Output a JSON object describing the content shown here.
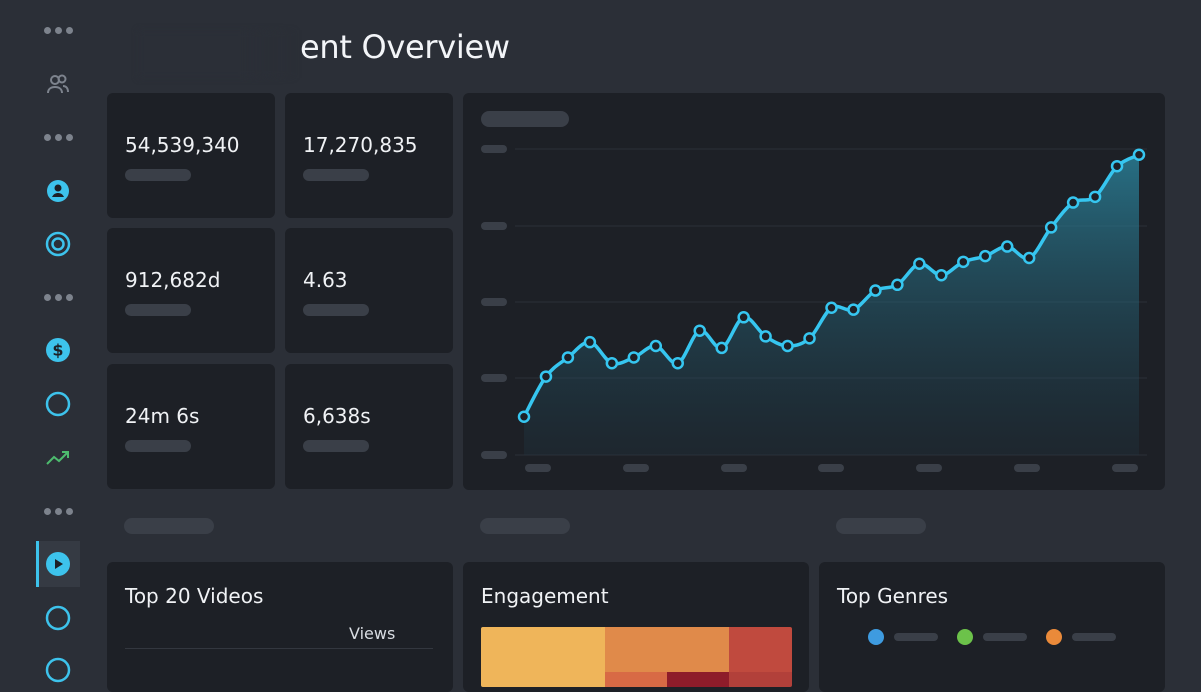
{
  "header": {
    "title": "ent Overview"
  },
  "sidebar": {
    "icons": [
      "more-dots-icon",
      "users-icon",
      "more-dots-icon",
      "user-circle-icon",
      "target-icon",
      "more-dots-icon",
      "dollar-icon",
      "circle-icon",
      "trend-up-icon",
      "more-dots-icon",
      "play-icon",
      "circle-icon",
      "circle-icon"
    ]
  },
  "stats": [
    {
      "value": "54,539,340"
    },
    {
      "value": "17,270,835"
    },
    {
      "value": "912,682d"
    },
    {
      "value": "4.63"
    },
    {
      "value": "24m 6s"
    },
    {
      "value": "6,638s"
    }
  ],
  "panels": {
    "top_videos": {
      "title": "Top 20 Videos",
      "views_header": "Views"
    },
    "engagement": {
      "title": "Engagement"
    },
    "genres": {
      "title": "Top Genres",
      "legend_colors": [
        "#3e9be0",
        "#6cc24a",
        "#ea8a3a"
      ]
    }
  },
  "colors": {
    "accent": "#3dc3ec",
    "trend": "#4dbb6e",
    "line": "#36c6f0"
  },
  "chart_data": {
    "type": "area",
    "values": [
      1.0,
      2.05,
      2.55,
      2.95,
      2.4,
      2.55,
      2.85,
      2.4,
      3.25,
      2.8,
      3.6,
      3.1,
      2.85,
      3.05,
      3.85,
      3.8,
      4.3,
      4.45,
      5.0,
      4.7,
      5.05,
      5.2,
      5.45,
      5.15,
      5.95,
      6.6,
      6.75,
      7.55,
      7.85
    ],
    "title": "",
    "xlabel": "",
    "ylabel": "",
    "grid": true
  }
}
